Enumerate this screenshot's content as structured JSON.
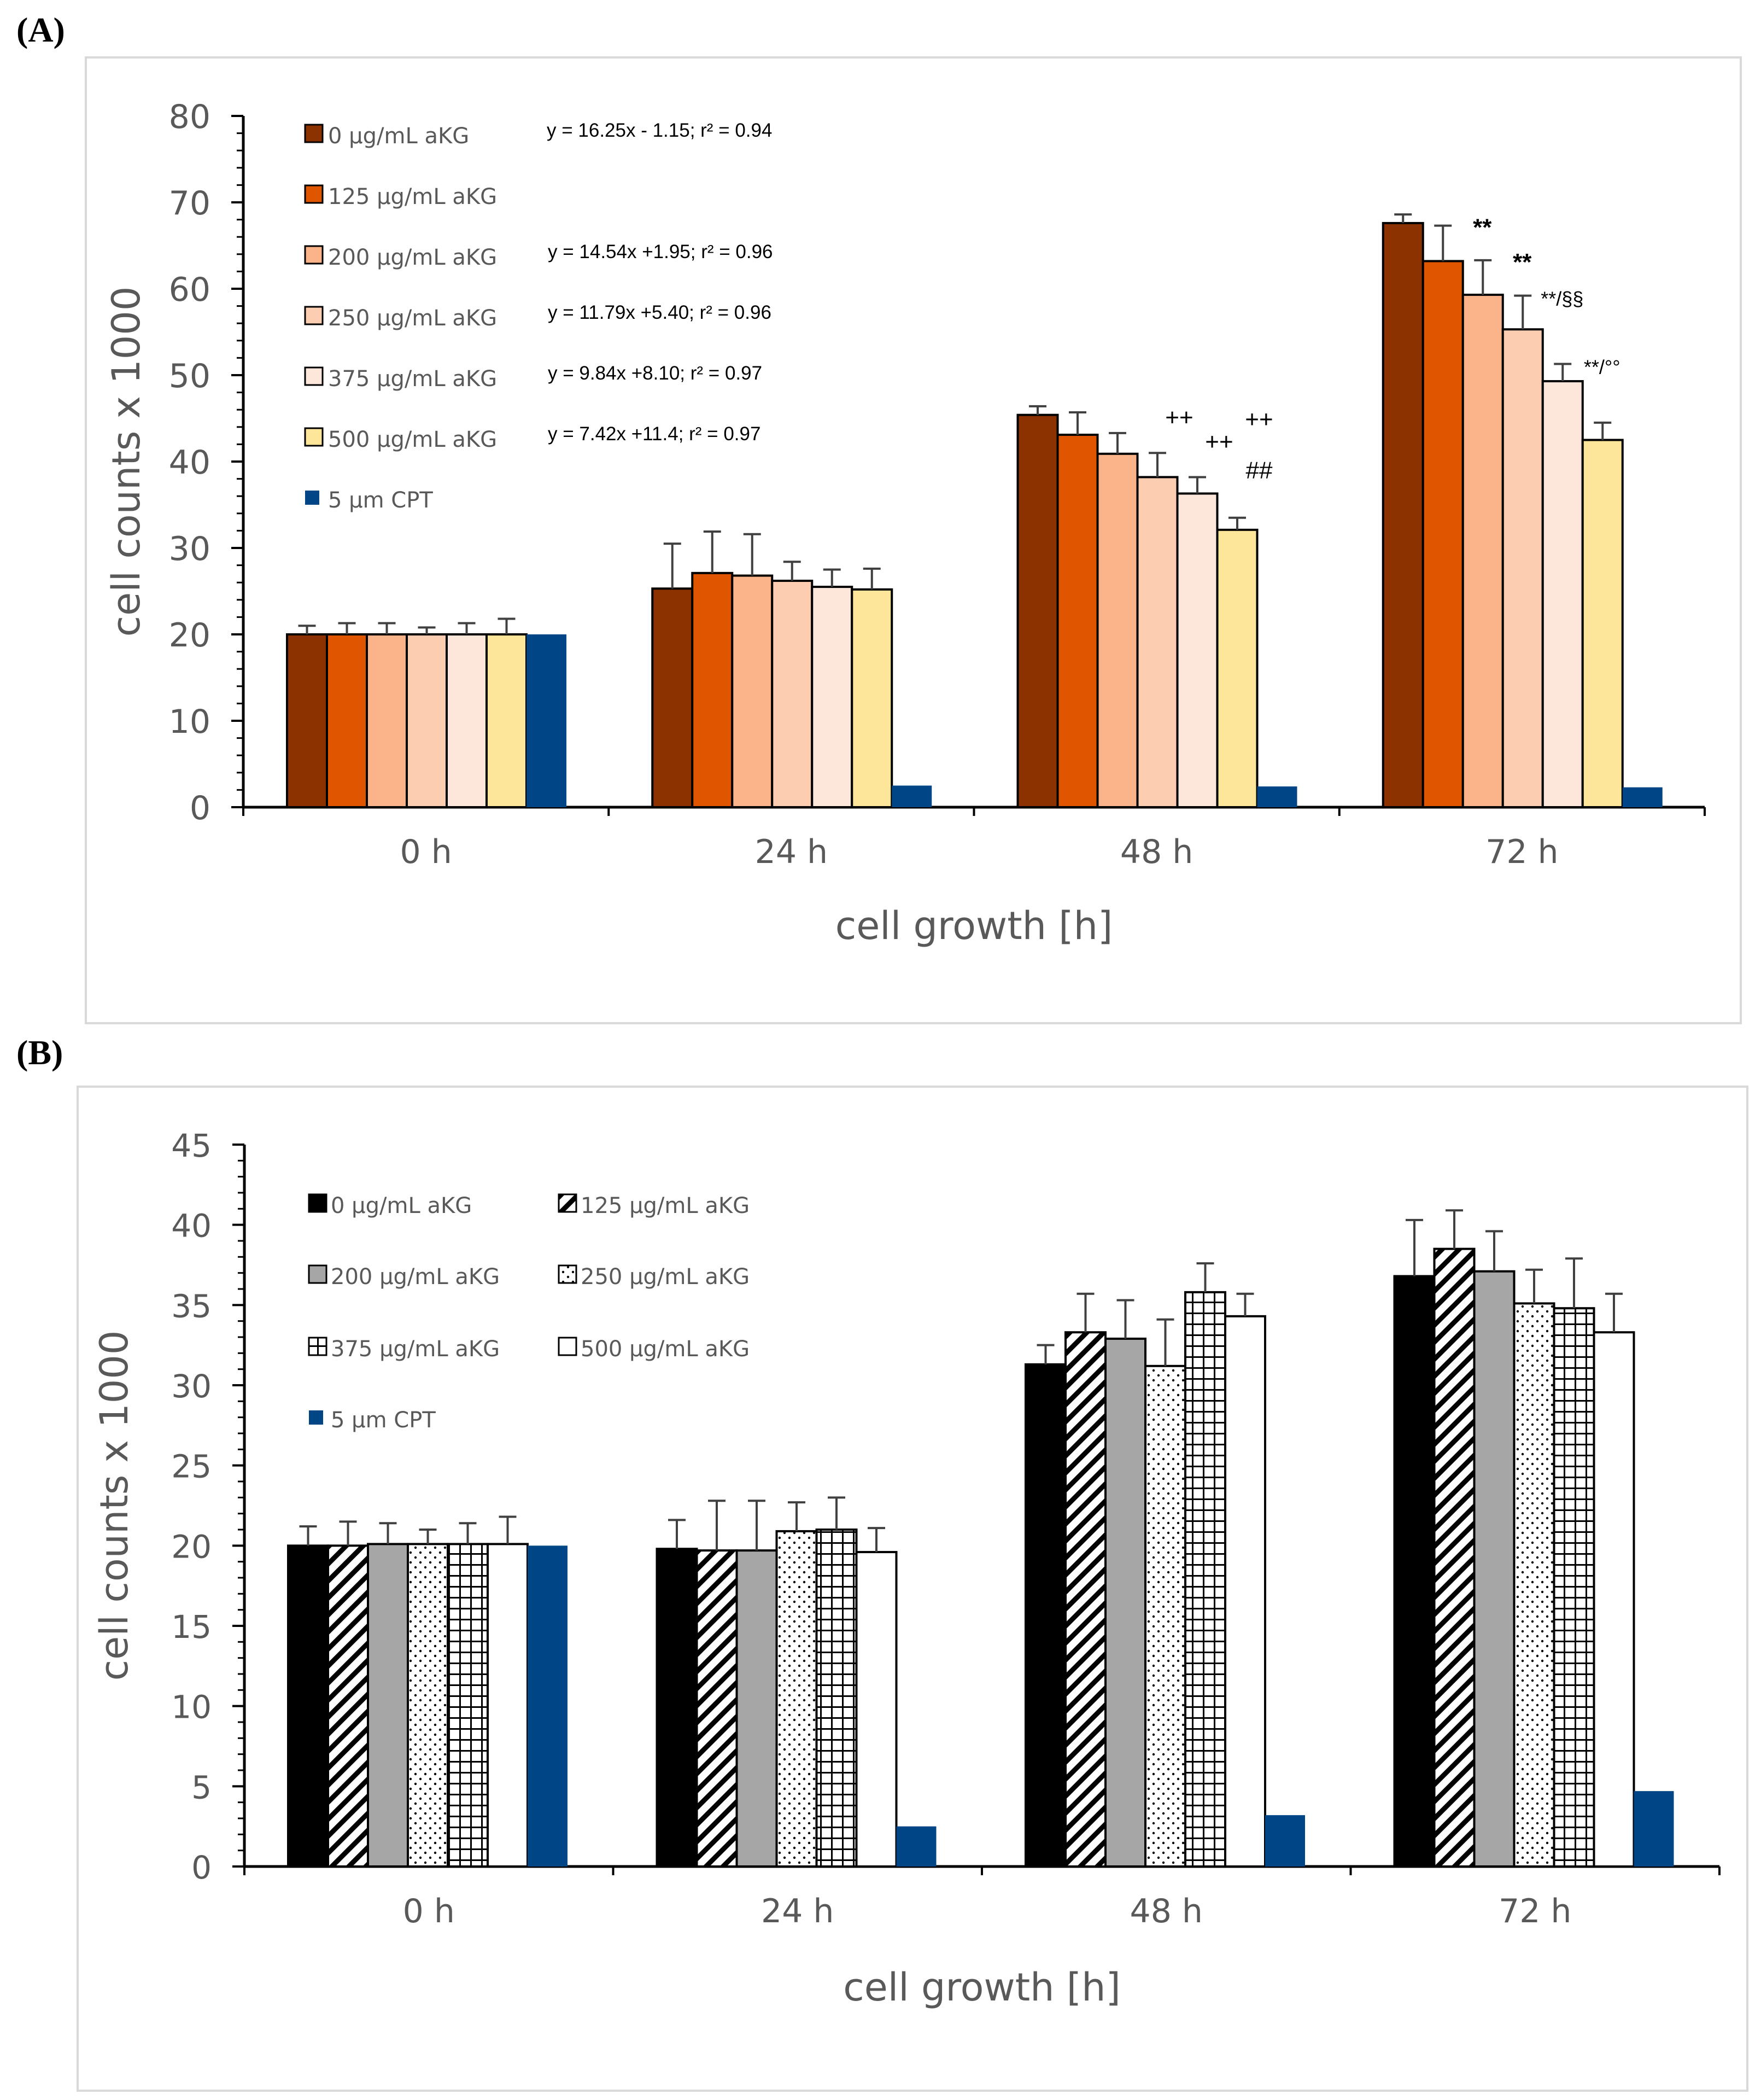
{
  "panels": {
    "a_label": "(A)",
    "b_label": "(B)"
  },
  "chart_data": [
    {
      "type": "bar",
      "panel": "A",
      "xlabel": "cell growth [h]",
      "ylabel": "cell counts x 1000",
      "ylim": [
        0,
        80
      ],
      "yticks": [
        0,
        10,
        20,
        30,
        40,
        50,
        60,
        70,
        80
      ],
      "categories": [
        "0 h",
        "24 h",
        "48 h",
        "72 h"
      ],
      "series": [
        {
          "name": "0 µg/mL aKG",
          "color": "#8B3200",
          "stroke": "#000000",
          "values": [
            20,
            25.3,
            45.4,
            67.6
          ],
          "errors": [
            1.0,
            5.2,
            1.0,
            1.0
          ]
        },
        {
          "name": "125 µg/mL aKG",
          "color": "#E05500",
          "stroke": "#000000",
          "values": [
            20,
            27.1,
            43.1,
            63.2
          ],
          "errors": [
            1.3,
            4.8,
            2.6,
            4.1
          ]
        },
        {
          "name": "200 µg/mL aKG",
          "color": "#FBB48A",
          "stroke": "#000000",
          "values": [
            20,
            26.8,
            40.9,
            59.3
          ],
          "errors": [
            1.3,
            4.8,
            2.4,
            4.0
          ]
        },
        {
          "name": "250 µg/mL aKG",
          "color": "#FCCDB0",
          "stroke": "#000000",
          "values": [
            20,
            26.2,
            38.2,
            55.3
          ],
          "errors": [
            0.8,
            2.2,
            2.8,
            3.9
          ]
        },
        {
          "name": "375 µg/mL aKG",
          "color": "#FDE6DA",
          "stroke": "#000000",
          "values": [
            20,
            25.5,
            36.3,
            49.3
          ],
          "errors": [
            1.3,
            2.0,
            1.9,
            2.0
          ]
        },
        {
          "name": "500 µg/mL aKG",
          "color": "#FDE59A",
          "stroke": "#000000",
          "values": [
            20,
            25.2,
            32.1,
            42.5
          ],
          "errors": [
            1.8,
            2.4,
            1.4,
            2.0
          ]
        },
        {
          "name": "5 µm CPT",
          "color": "#004585",
          "stroke": "none",
          "values": [
            20,
            2.5,
            2.4,
            2.3
          ],
          "errors": [
            0,
            0,
            0,
            0
          ]
        }
      ],
      "fit_equations": [
        {
          "series": "0 µg/mL aKG",
          "text": "y = 16.25x - 1.15; r² = 0.94"
        },
        {
          "series": "200 µg/mL aKG",
          "text": "y = 14.54x +1.95; r² = 0.96"
        },
        {
          "series": "250 µg/mL aKG",
          "text": "y = 11.79x +5.40; r² = 0.96"
        },
        {
          "series": "375 µg/mL aKG",
          "text": "y =   9.84x +8.10; r² = 0.97"
        },
        {
          "series": "500 µg/mL aKG",
          "text": "y =   7.42x +11.4; r² = 0.97"
        }
      ],
      "annotations": [
        {
          "category": "48 h",
          "series_index": 3,
          "text": "++"
        },
        {
          "category": "48 h",
          "series_index": 4,
          "text": "++"
        },
        {
          "category": "48 h",
          "series_index": 5,
          "text": "++"
        },
        {
          "category": "48 h",
          "series_index": 5,
          "text": "##"
        },
        {
          "category": "72 h",
          "series_index": 1,
          "text": "**"
        },
        {
          "category": "72 h",
          "series_index": 2,
          "text": "**"
        },
        {
          "category": "72 h",
          "series_index": 3,
          "text": "**/§§"
        },
        {
          "category": "72 h",
          "series_index": 4,
          "text": "**/°°"
        }
      ]
    },
    {
      "type": "bar",
      "panel": "B",
      "xlabel": "cell growth [h]",
      "ylabel": "cell counts x 1000",
      "ylim": [
        0,
        45
      ],
      "yticks": [
        0,
        5,
        10,
        15,
        20,
        25,
        30,
        35,
        40,
        45
      ],
      "categories": [
        "0 h",
        "24 h",
        "48 h",
        "72 h"
      ],
      "series": [
        {
          "name": "0 µg/mL aKG",
          "fill": "solid",
          "color": "#000000",
          "values": [
            20,
            19.8,
            31.3,
            36.8
          ],
          "errors": [
            1.2,
            1.8,
            1.2,
            3.5
          ]
        },
        {
          "name": "125 µg/mL aKG",
          "fill": "hatch",
          "color": "#000000",
          "values": [
            20,
            19.7,
            33.3,
            38.5
          ],
          "errors": [
            1.5,
            3.1,
            2.4,
            2.4
          ]
        },
        {
          "name": "200 µg/mL aKG",
          "fill": "solid",
          "color": "#A6A6A6",
          "values": [
            20.1,
            19.7,
            32.9,
            37.1
          ],
          "errors": [
            1.3,
            3.1,
            2.4,
            2.5
          ]
        },
        {
          "name": "250 µg/mL aKG",
          "fill": "dots",
          "color": "#000000",
          "values": [
            20.1,
            20.9,
            31.2,
            35.1
          ],
          "errors": [
            0.9,
            1.8,
            2.9,
            2.1
          ]
        },
        {
          "name": "375 µg/mL aKG",
          "fill": "grid",
          "color": "#000000",
          "values": [
            20.1,
            21.0,
            35.8,
            34.8
          ],
          "errors": [
            1.3,
            2.0,
            1.8,
            3.1
          ]
        },
        {
          "name": "500 µg/mL aKG",
          "fill": "solid",
          "color": "#FFFFFF",
          "values": [
            20.1,
            19.6,
            34.3,
            33.3
          ],
          "errors": [
            1.7,
            1.5,
            1.4,
            2.4
          ]
        },
        {
          "name": "5 µm CPT",
          "fill": "solid",
          "color": "#004585",
          "values": [
            20,
            2.5,
            3.2,
            4.7
          ],
          "errors": [
            0,
            0,
            0,
            0
          ]
        }
      ]
    }
  ]
}
